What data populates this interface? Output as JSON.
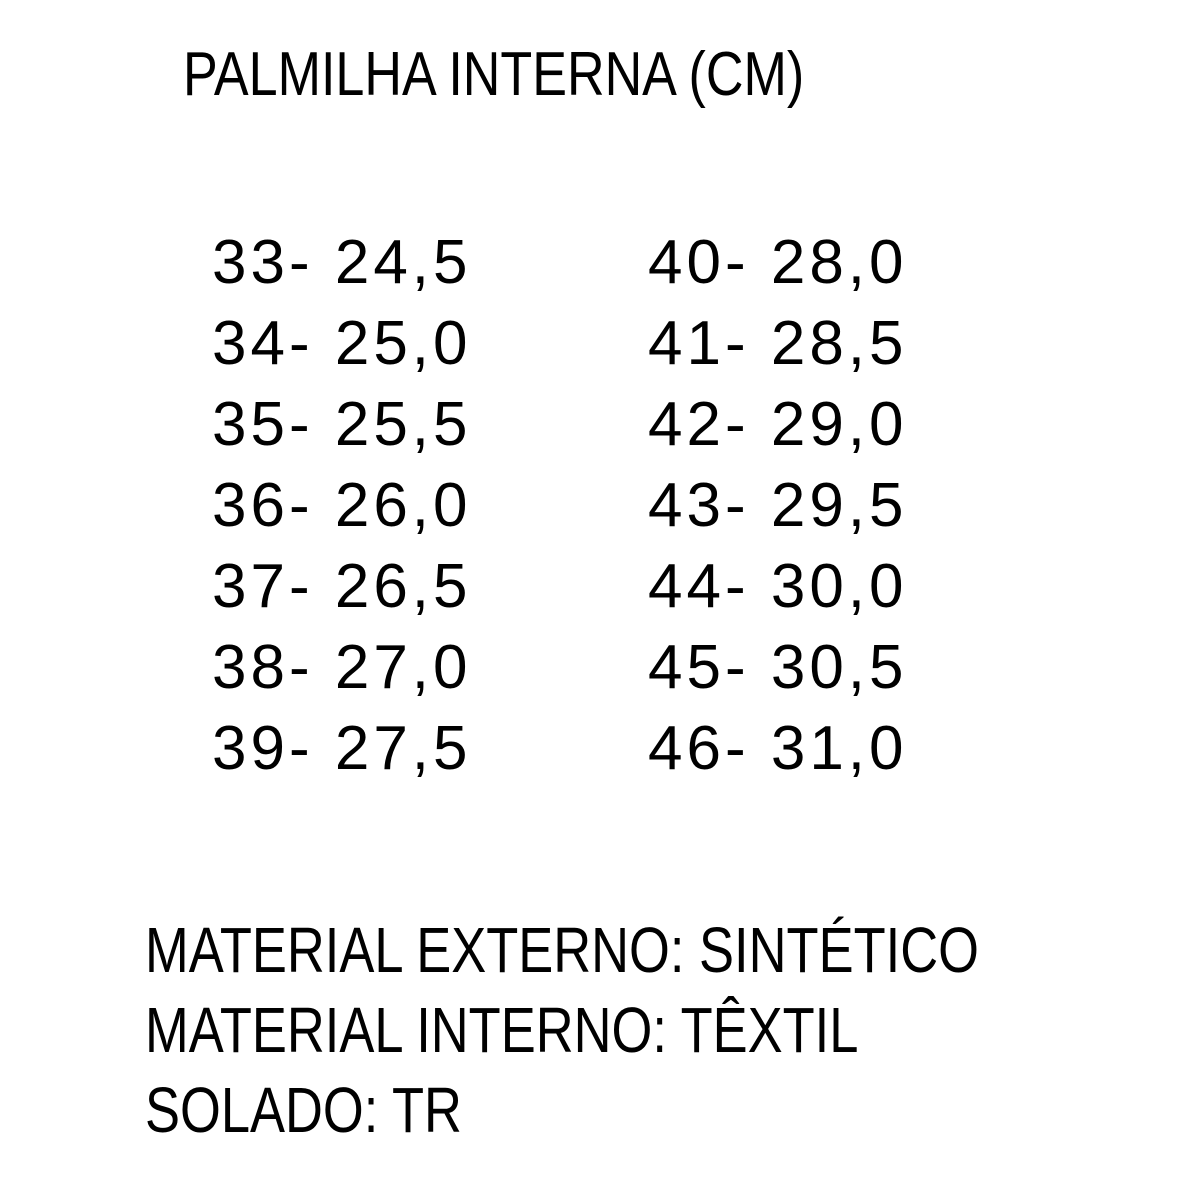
{
  "title": "PALMILHA INTERNA (CM)",
  "sizes_left": [
    "33- 24,5",
    "34- 25,0",
    "35- 25,5",
    "36- 26,0",
    "37- 26,5",
    "38- 27,0",
    "39- 27,5"
  ],
  "sizes_right": [
    "40- 28,0",
    "41- 28,5",
    "42- 29,0",
    "43- 29,5",
    "44- 30,0",
    "45- 30,5",
    "46- 31,0"
  ],
  "specs": [
    "MATERIAL EXTERNO: SINTÉTICO",
    "MATERIAL INTERNO: TÊXTIL",
    "SOLADO: TR"
  ]
}
